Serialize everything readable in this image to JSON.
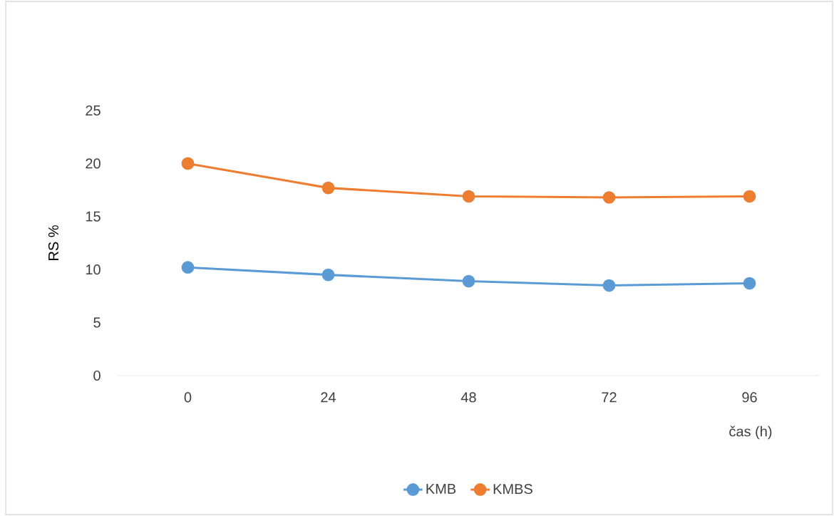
{
  "chart_data": {
    "type": "line",
    "categories": [
      "0",
      "24",
      "48",
      "72",
      "96"
    ],
    "series": [
      {
        "name": "KMB",
        "color": "#5b9bd5",
        "values": [
          10.2,
          9.5,
          8.9,
          8.5,
          8.7
        ]
      },
      {
        "name": "KMBS",
        "color": "#ed7d31",
        "values": [
          20.0,
          17.7,
          16.9,
          16.8,
          16.9
        ]
      }
    ],
    "ylim": [
      0,
      25
    ],
    "yticks": [
      0,
      5,
      10,
      15,
      20,
      25
    ],
    "xlabel": "čas (h)",
    "ylabel": "RS %",
    "grid": false,
    "legend": "bottom",
    "marker": "circle",
    "line_style": "solid"
  }
}
